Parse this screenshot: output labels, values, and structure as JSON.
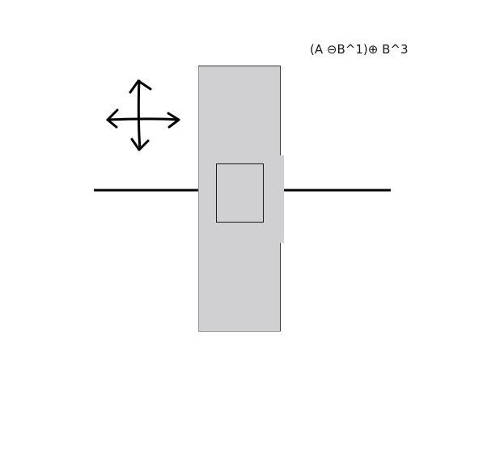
{
  "formula": {
    "parts": [
      "(A ",
      "⊖",
      "B^1)",
      "⊕",
      " B^3"
    ]
  },
  "colors": {
    "ink": "#000000",
    "block_fill": "#d0d0d2",
    "block_edge": "#3a3a3a",
    "background": "#ffffff"
  },
  "icons": [
    "four-way-move-arrows-icon"
  ]
}
